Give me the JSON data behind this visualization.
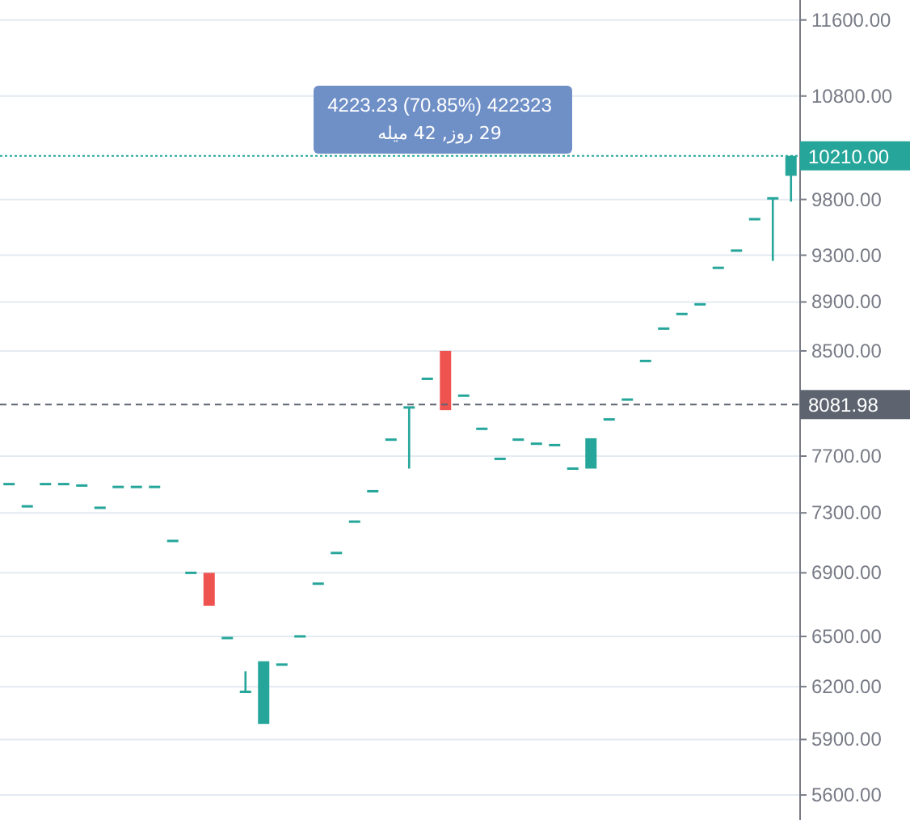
{
  "chart_data": {
    "type": "candlestick",
    "categories": [
      null,
      null,
      null,
      null,
      null,
      null,
      null,
      null,
      null,
      null,
      null,
      null,
      null,
      null,
      null,
      null,
      null,
      null,
      null,
      null,
      null,
      null,
      null,
      null,
      null,
      null,
      null,
      null,
      null,
      null,
      null,
      null,
      null,
      null,
      null,
      null,
      null,
      null,
      null,
      null,
      null,
      null,
      null,
      null
    ],
    "ohlc": [
      [
        7500,
        7500,
        7500,
        7500
      ],
      [
        7345,
        7345,
        7345,
        7345
      ],
      [
        7500,
        7500,
        7500,
        7500
      ],
      [
        7500,
        7500,
        7500,
        7500
      ],
      [
        7490,
        7490,
        7490,
        7490
      ],
      [
        7335,
        7335,
        7335,
        7335
      ],
      [
        7480,
        7480,
        7480,
        7480
      ],
      [
        7480,
        7480,
        7480,
        7480
      ],
      [
        7480,
        7480,
        7480,
        7480
      ],
      [
        7110,
        7110,
        7110,
        7110
      ],
      [
        6900,
        6900,
        6900,
        6900
      ],
      [
        6900,
        6900,
        6690,
        6690
      ],
      [
        6490,
        6490,
        6490,
        6490
      ],
      [
        6170,
        6290,
        6170,
        6170
      ],
      [
        5987,
        6350,
        5987,
        6350
      ],
      [
        6330,
        6330,
        6330,
        6330
      ],
      [
        6500,
        6500,
        6500,
        6500
      ],
      [
        6830,
        6830,
        6830,
        6830
      ],
      [
        7030,
        7030,
        7030,
        7030
      ],
      [
        7240,
        7240,
        7240,
        7240
      ],
      [
        7450,
        7450,
        7450,
        7450
      ],
      [
        7820,
        7820,
        7820,
        7820
      ],
      [
        8060,
        8060,
        7610,
        8060
      ],
      [
        8280,
        8280,
        8280,
        8280
      ],
      [
        8500,
        8500,
        8040,
        8040
      ],
      [
        8150,
        8150,
        8150,
        8150
      ],
      [
        7900,
        7900,
        7900,
        7900
      ],
      [
        7680,
        7680,
        7680,
        7680
      ],
      [
        7820,
        7820,
        7820,
        7820
      ],
      [
        7790,
        7790,
        7790,
        7790
      ],
      [
        7780,
        7780,
        7780,
        7780
      ],
      [
        7610,
        7610,
        7610,
        7610
      ],
      [
        7610,
        7830,
        7610,
        7830
      ],
      [
        7970,
        7970,
        7970,
        7970
      ],
      [
        8120,
        8120,
        8120,
        8120
      ],
      [
        8420,
        8420,
        8420,
        8420
      ],
      [
        8680,
        8680,
        8680,
        8680
      ],
      [
        8800,
        8800,
        8800,
        8800
      ],
      [
        8880,
        8880,
        8880,
        8880
      ],
      [
        9190,
        9190,
        9190,
        9190
      ],
      [
        9340,
        9340,
        9340,
        9340
      ],
      [
        9620,
        9620,
        9620,
        9620
      ],
      [
        9810,
        9810,
        9250,
        9810
      ],
      [
        10020,
        10210,
        9780,
        10210
      ]
    ],
    "colors": [
      "#26a69a",
      "#26a69a",
      "#26a69a",
      "#26a69a",
      "#26a69a",
      "#26a69a",
      "#26a69a",
      "#26a69a",
      "#26a69a",
      "#26a69a",
      "#26a69a",
      "#ef5350",
      "#26a69a",
      "#26a69a",
      "#26a69a",
      "#26a69a",
      "#26a69a",
      "#26a69a",
      "#26a69a",
      "#26a69a",
      "#26a69a",
      "#26a69a",
      "#26a69a",
      "#26a69a",
      "#ef5350",
      "#26a69a",
      "#26a69a",
      "#26a69a",
      "#26a69a",
      "#26a69a",
      "#26a69a",
      "#26a69a",
      "#26a69a",
      "#26a69a",
      "#26a69a",
      "#26a69a",
      "#26a69a",
      "#26a69a",
      "#26a69a",
      "#26a69a",
      "#26a69a",
      "#26a69a",
      "#26a69a",
      "#26a69a"
    ],
    "log": "y",
    "ylim": [
      5470,
      11820
    ],
    "yticks": [
      {
        "value": 5600,
        "label": "5600.00"
      },
      {
        "value": 5900,
        "label": "5900.00"
      },
      {
        "value": 6200,
        "label": "6200.00"
      },
      {
        "value": 6500,
        "label": "6500.00"
      },
      {
        "value": 6900,
        "label": "6900.00"
      },
      {
        "value": 7300,
        "label": "7300.00"
      },
      {
        "value": 7700,
        "label": "7700.00"
      },
      {
        "value": 8500,
        "label": "8500.00"
      },
      {
        "value": 8900,
        "label": "8900.00"
      },
      {
        "value": 9300,
        "label": "9300.00"
      },
      {
        "value": 9800,
        "label": "9800.00"
      },
      {
        "value": 10800,
        "label": "10800.00"
      },
      {
        "value": 11600,
        "label": "11600.00"
      }
    ],
    "grid": "y",
    "ref_lines": [
      {
        "axis": "y",
        "value": 10210,
        "label": "10210.00",
        "color": "#26a69a",
        "line_style": "dotted"
      },
      {
        "axis": "y",
        "value": 8081.98,
        "label": "8081.98",
        "color": "#5d6470",
        "line_style": "dashed"
      }
    ],
    "annotations": [
      "4223.23 (70.85%) 422323",
      "29 روز, 42 میله"
    ],
    "tick_labels": "y"
  }
}
